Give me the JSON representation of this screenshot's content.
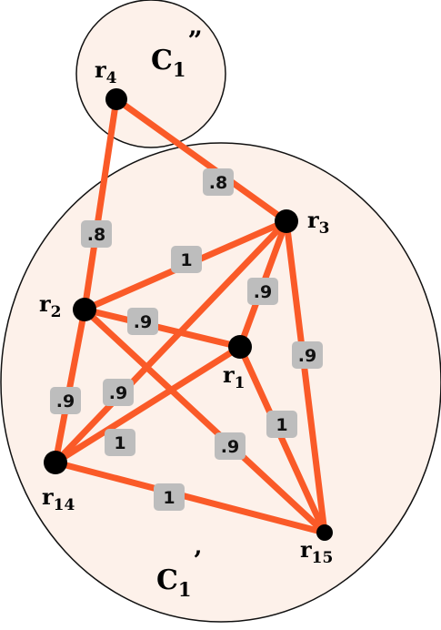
{
  "clusters": [
    {
      "id": "c1pp",
      "letter": "C",
      "sub": "1",
      "mark": "”"
    },
    {
      "id": "c1p",
      "letter": "C",
      "sub": "1",
      "mark": "’"
    }
  ],
  "nodes": [
    {
      "id": "r4",
      "letter": "r",
      "sub": "4"
    },
    {
      "id": "r3",
      "letter": "r",
      "sub": "3"
    },
    {
      "id": "r2",
      "letter": "r",
      "sub": "2"
    },
    {
      "id": "r1",
      "letter": "r",
      "sub": "1"
    },
    {
      "id": "r14",
      "letter": "r",
      "sub": "14"
    },
    {
      "id": "r15",
      "letter": "r",
      "sub": "15"
    }
  ],
  "edges": [
    {
      "from": "r4",
      "to": "r3",
      "weight": ".8"
    },
    {
      "from": "r4",
      "to": "r2",
      "weight": ".8"
    },
    {
      "from": "r2",
      "to": "r3",
      "weight": "1"
    },
    {
      "from": "r3",
      "to": "r1",
      "weight": ".9"
    },
    {
      "from": "r3",
      "to": "r15",
      "weight": ".9"
    },
    {
      "from": "r2",
      "to": "r1",
      "weight": ".9"
    },
    {
      "from": "r3",
      "to": "r14",
      "weight": ".9"
    },
    {
      "from": "r2",
      "to": "r14",
      "weight": ".9"
    },
    {
      "from": "r1",
      "to": "r14",
      "weight": "1"
    },
    {
      "from": "r1",
      "to": "r15",
      "weight": "1"
    },
    {
      "from": "r2",
      "to": "r15",
      "weight": ".9"
    },
    {
      "from": "r14",
      "to": "r15",
      "weight": "1"
    }
  ],
  "colors": {
    "edge": "#fa5a28",
    "cluster_fill": "#fdf1ea",
    "weight_box": "#bdbdbd",
    "node": "#000000"
  }
}
